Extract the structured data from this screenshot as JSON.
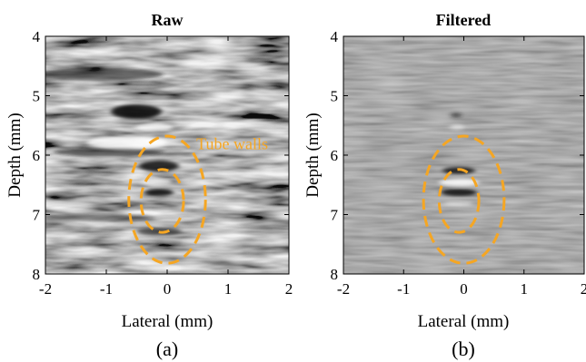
{
  "chart_data": [
    {
      "type": "heatmap",
      "title": "Raw",
      "xlabel": "Lateral (mm)",
      "ylabel": "Depth (mm)",
      "xlim": [
        -2,
        2
      ],
      "ylim": [
        4,
        8
      ],
      "y_reversed": true,
      "xticks": [
        -2,
        -1,
        0,
        1,
        2
      ],
      "yticks": [
        4,
        5,
        6,
        7,
        8
      ],
      "colormap": "grayscale",
      "caption": "(a)",
      "ellipses": [
        {
          "cx": 0.0,
          "cy": 6.75,
          "rx": 0.63,
          "ry": 1.07
        },
        {
          "cx": -0.08,
          "cy": 6.77,
          "rx": 0.35,
          "ry": 0.53
        }
      ],
      "annotation": {
        "text": "Tube walls",
        "x": 0.48,
        "y": 5.9
      }
    },
    {
      "type": "heatmap",
      "title": "Filtered",
      "xlabel": "Lateral (mm)",
      "ylabel": "Depth (mm)",
      "xlim": [
        -2,
        2
      ],
      "ylim": [
        4,
        8
      ],
      "y_reversed": true,
      "xticks": [
        -2,
        -1,
        0,
        1,
        2
      ],
      "xtick_labels": [
        "-2",
        "-1",
        "0",
        "1",
        "2"
      ],
      "yticks": [
        4,
        5,
        6,
        7,
        8
      ],
      "colormap": "grayscale",
      "caption": "(b)",
      "ellipses": [
        {
          "cx": 0.0,
          "cy": 6.75,
          "rx": 0.67,
          "ry": 1.07
        },
        {
          "cx": -0.08,
          "cy": 6.77,
          "rx": 0.33,
          "ry": 0.53
        }
      ]
    }
  ],
  "colors": {
    "ellipse": "#f5a623",
    "annotation": "#f5a623"
  }
}
